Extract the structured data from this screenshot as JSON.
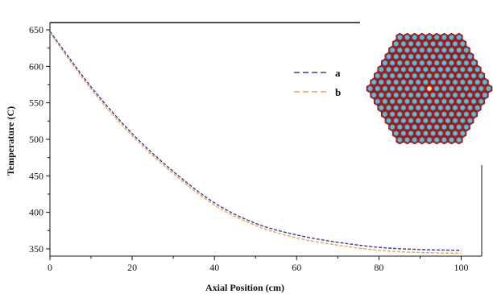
{
  "chart_data": {
    "type": "line",
    "title": "",
    "xlabel": "Axial Position (cm)",
    "ylabel": "Temperature  (C)",
    "xlim": [
      0,
      105
    ],
    "ylim": [
      340,
      660
    ],
    "xticks": [
      0,
      20,
      40,
      60,
      80,
      100
    ],
    "yticks": [
      350,
      400,
      450,
      500,
      550,
      600,
      650
    ],
    "grid": false,
    "legend_position": "top-right",
    "series": [
      {
        "name": "a",
        "color": "#3a3aa0",
        "dash": "dashed",
        "x": [
          0,
          10,
          20,
          30,
          40,
          50,
          60,
          70,
          80,
          90,
          100
        ],
        "y": [
          648,
          572,
          508,
          456,
          413,
          385,
          369,
          359,
          352,
          349,
          348
        ]
      },
      {
        "name": "b",
        "color": "#f0a050",
        "dash": "dashed",
        "x": [
          0,
          10,
          20,
          30,
          40,
          50,
          60,
          70,
          80,
          90,
          100
        ],
        "y": [
          646,
          569,
          505,
          453,
          410,
          382,
          365,
          355,
          348,
          345,
          344
        ]
      }
    ],
    "inset": {
      "type": "hexagonal-lattice",
      "cell_color": "#4fc3d9",
      "wall_color": "#b5222b",
      "center_color": "#f5e38a"
    }
  }
}
